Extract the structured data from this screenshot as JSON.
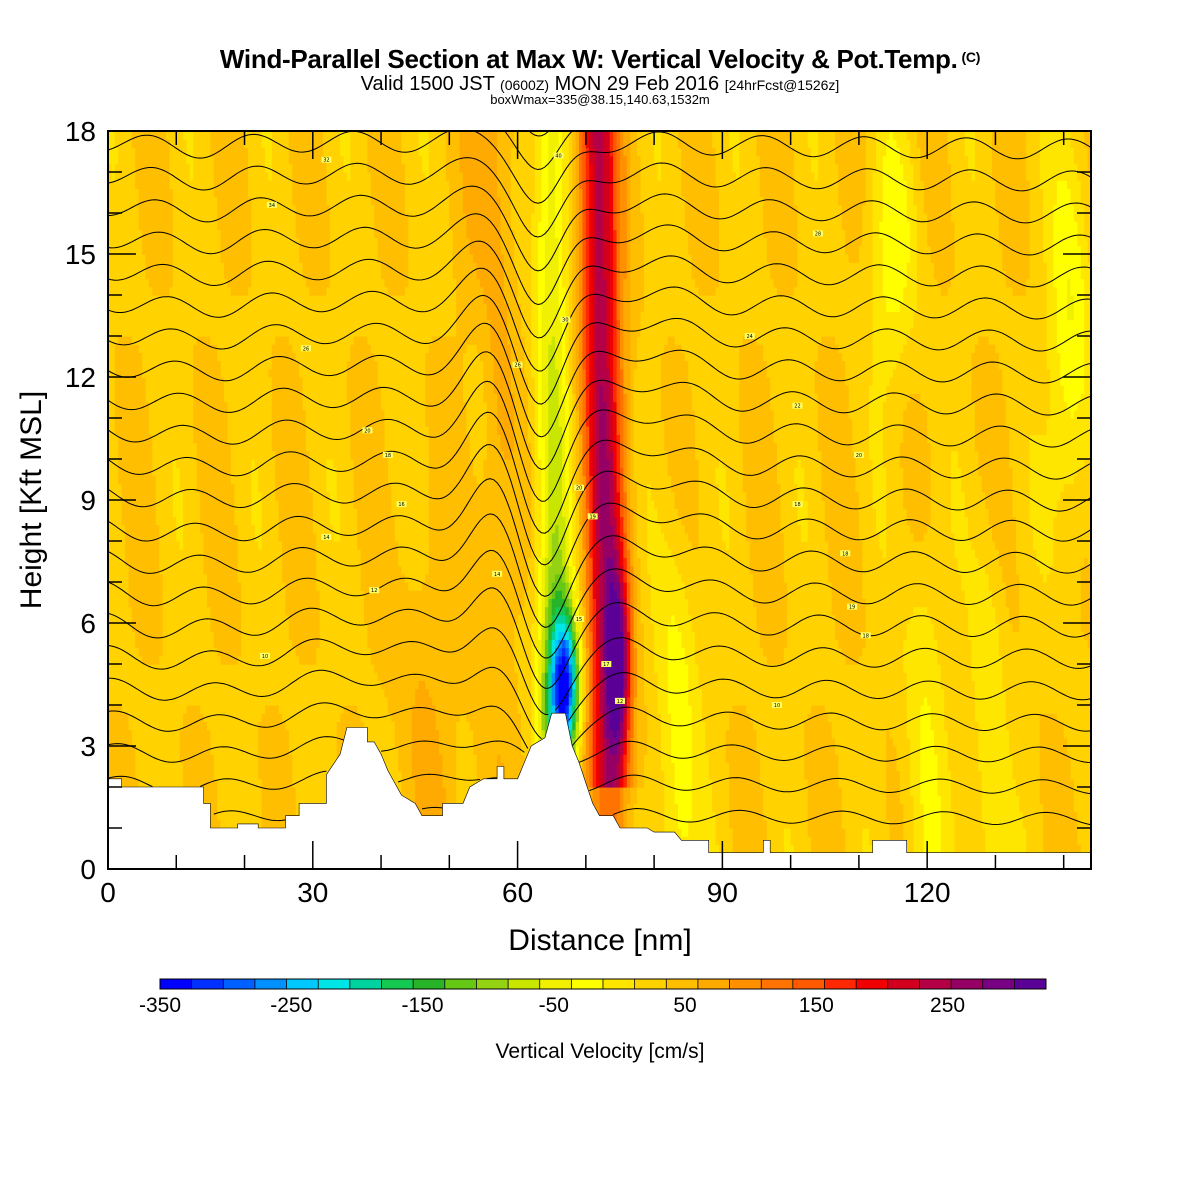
{
  "header": {
    "title": "Wind-Parallel Section at Max W: Vertical Velocity & Pot.Temp.",
    "copyright": "(C)",
    "subtitle_a": "Valid 1500 JST",
    "subtitle_b": "(0600Z)",
    "subtitle_c": "MON 29 Feb 2016",
    "subtitle_d": "[24hrFcst@1526z]",
    "subtitle2": "boxWmax=335@38.15,140.63,1532m"
  },
  "chart_data": {
    "type": "heatmap",
    "title": "Wind-Parallel Section at Max W: Vertical Velocity & Pot.Temp.",
    "xlabel": "Distance [nm]",
    "ylabel": "Height [Kft MSL]",
    "xlim": [
      0,
      144
    ],
    "ylim": [
      0,
      18
    ],
    "x_ticks": [
      0,
      30,
      60,
      90,
      120
    ],
    "x_tick_labels": [
      "0",
      "30",
      "60",
      "90",
      "120"
    ],
    "y_ticks": [
      0,
      3,
      6,
      9,
      12,
      15,
      18
    ],
    "y_tick_labels": [
      "0",
      "3",
      "6",
      "9",
      "12",
      "15",
      "18"
    ],
    "colorbar": {
      "title": "Vertical Velocity [cm/s]",
      "min": -350,
      "max": 325,
      "tick_values": [
        -350,
        -250,
        -150,
        -50,
        50,
        150,
        250
      ],
      "tick_labels": [
        "-350",
        "-250",
        "-150",
        "-50",
        "50",
        "150",
        "250"
      ],
      "colors": [
        "#0000ff",
        "#0030ff",
        "#0060ff",
        "#0090ff",
        "#00c8ff",
        "#00e6e6",
        "#00d2a0",
        "#14c850",
        "#28b428",
        "#64c814",
        "#96d214",
        "#c8e600",
        "#f0f000",
        "#ffff00",
        "#ffe600",
        "#ffd200",
        "#ffbe00",
        "#ffaa00",
        "#ff9100",
        "#ff7300",
        "#ff5a00",
        "#ff2800",
        "#f00000",
        "#d2001e",
        "#b40046",
        "#960064",
        "#780082",
        "#5a0096"
      ]
    },
    "contour_labels": [
      {
        "x": 32,
        "y": 17.3,
        "text": "32"
      },
      {
        "x": 24,
        "y": 16.2,
        "text": "34"
      },
      {
        "x": 66,
        "y": 17.4,
        "text": "40"
      },
      {
        "x": 104,
        "y": 15.5,
        "text": "28"
      },
      {
        "x": 67,
        "y": 13.4,
        "text": "30"
      },
      {
        "x": 94,
        "y": 13.0,
        "text": "24"
      },
      {
        "x": 29,
        "y": 12.7,
        "text": "26"
      },
      {
        "x": 60,
        "y": 12.3,
        "text": "26"
      },
      {
        "x": 101,
        "y": 11.3,
        "text": "22"
      },
      {
        "x": 38,
        "y": 10.7,
        "text": "20"
      },
      {
        "x": 110,
        "y": 10.1,
        "text": "20"
      },
      {
        "x": 41,
        "y": 10.1,
        "text": "18"
      },
      {
        "x": 69,
        "y": 9.3,
        "text": "20"
      },
      {
        "x": 43,
        "y": 8.9,
        "text": "16"
      },
      {
        "x": 101,
        "y": 8.9,
        "text": "18"
      },
      {
        "x": 71,
        "y": 8.6,
        "text": "19"
      },
      {
        "x": 32,
        "y": 8.1,
        "text": "14"
      },
      {
        "x": 108,
        "y": 7.7,
        "text": "18"
      },
      {
        "x": 57,
        "y": 7.2,
        "text": "14"
      },
      {
        "x": 39,
        "y": 6.8,
        "text": "12"
      },
      {
        "x": 109,
        "y": 6.4,
        "text": "19"
      },
      {
        "x": 69,
        "y": 6.1,
        "text": "15"
      },
      {
        "x": 111,
        "y": 5.7,
        "text": "18"
      },
      {
        "x": 23,
        "y": 5.2,
        "text": "10"
      },
      {
        "x": 73,
        "y": 5.0,
        "text": "17"
      },
      {
        "x": 75,
        "y": 4.1,
        "text": "12"
      },
      {
        "x": 98,
        "y": 4.0,
        "text": "10"
      }
    ]
  }
}
